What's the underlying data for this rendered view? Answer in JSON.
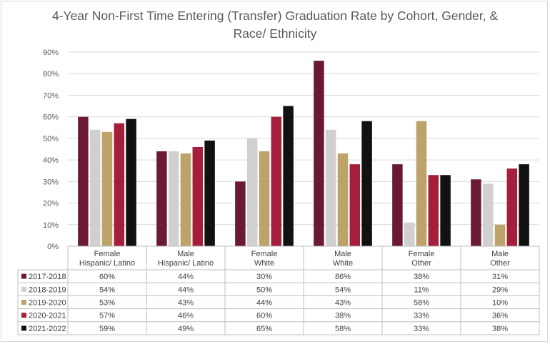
{
  "chart_data": {
    "type": "bar",
    "title_lines": [
      "4-Year Non-First Time Entering (Transfer) Graduation Rate by Cohort, Gender, &",
      "Race/ Ethnicity"
    ],
    "categories": [
      [
        "Female",
        "Hispanic/ Latino"
      ],
      [
        "Male",
        "Hispanic/ Latino"
      ],
      [
        "Female",
        "White"
      ],
      [
        "Male",
        "White"
      ],
      [
        "Female",
        "Other"
      ],
      [
        "Male",
        "Other"
      ]
    ],
    "ylim": [
      0,
      90
    ],
    "yticks": [
      "0%",
      "10%",
      "20%",
      "30%",
      "40%",
      "50%",
      "60%",
      "70%",
      "80%",
      "90%"
    ],
    "grid": true,
    "legend_placement": "data table",
    "series": [
      {
        "name": "2017-2018",
        "color": "#6b1a33",
        "values": [
          60,
          44,
          30,
          86,
          38,
          31
        ],
        "labels": [
          "60%",
          "44%",
          "30%",
          "86%",
          "38%",
          "31%"
        ]
      },
      {
        "name": "2018-2019",
        "color": "#d0d0d0",
        "values": [
          54,
          44,
          50,
          54,
          11,
          29
        ],
        "labels": [
          "54%",
          "44%",
          "50%",
          "54%",
          "11%",
          "29%"
        ]
      },
      {
        "name": "2019-2020",
        "color": "#bda36a",
        "values": [
          53,
          43,
          44,
          43,
          58,
          10
        ],
        "labels": [
          "53%",
          "43%",
          "44%",
          "43%",
          "58%",
          "10%"
        ]
      },
      {
        "name": "2020-2021",
        "color": "#a31f3b",
        "values": [
          57,
          46,
          60,
          38,
          33,
          36
        ],
        "labels": [
          "57%",
          "46%",
          "60%",
          "38%",
          "33%",
          "36%"
        ]
      },
      {
        "name": "2021-2022",
        "color": "#111111",
        "values": [
          59,
          49,
          65,
          58,
          33,
          38
        ],
        "labels": [
          "59%",
          "49%",
          "65%",
          "58%",
          "33%",
          "38%"
        ]
      }
    ]
  }
}
